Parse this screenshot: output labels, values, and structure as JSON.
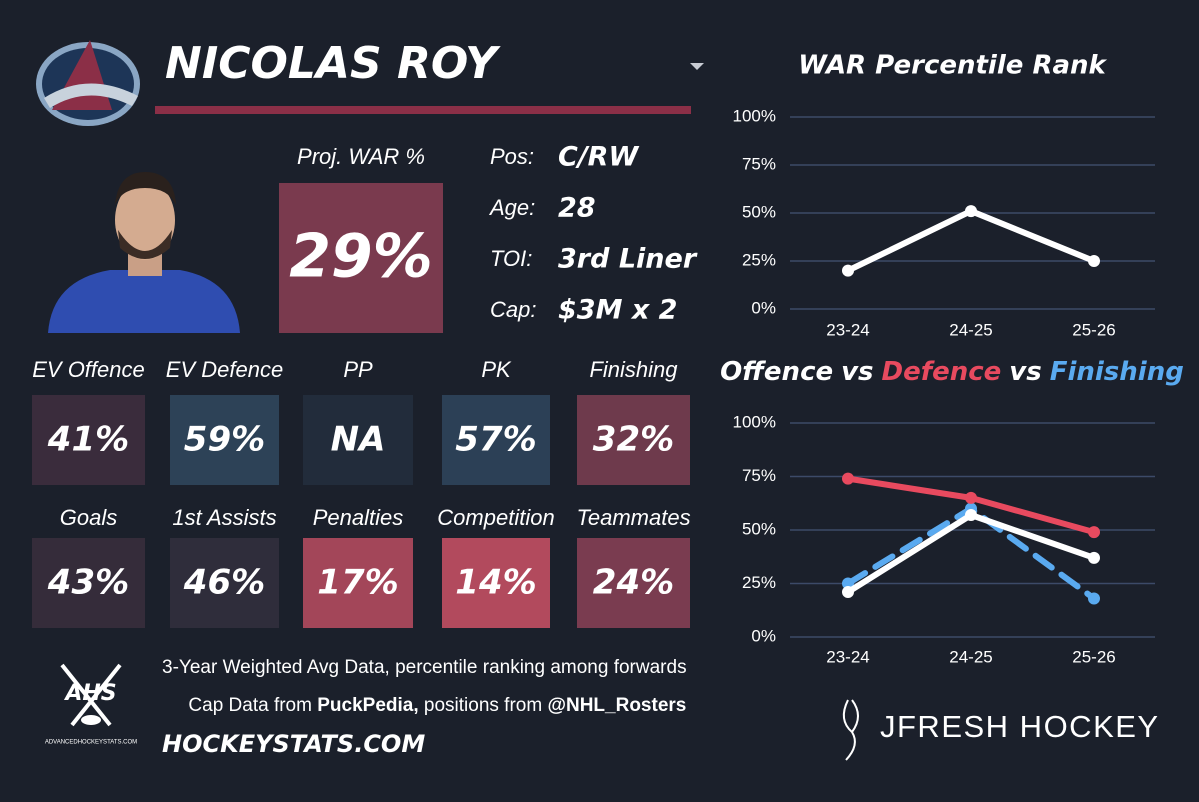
{
  "header": {
    "player": "NICOLAS ROY"
  },
  "projected_war": {
    "label": "Proj. WAR %",
    "value": "29%",
    "color": "#7a3a4e"
  },
  "bio": [
    {
      "label": "Pos:",
      "value": "C/RW"
    },
    {
      "label": "Age:",
      "value": "28"
    },
    {
      "label": "TOI:",
      "value": "3rd Liner"
    },
    {
      "label": "Cap:",
      "value": "$3M x 2"
    }
  ],
  "tiles": [
    {
      "label": "EV Offence",
      "value": "41%",
      "color": "#3a2c3c"
    },
    {
      "label": "EV Defence",
      "value": "59%",
      "color": "#2d4257"
    },
    {
      "label": "PP",
      "value": "NA",
      "color": "#222c3b"
    },
    {
      "label": "PK",
      "value": "57%",
      "color": "#2c4056"
    },
    {
      "label": "Finishing",
      "value": "32%",
      "color": "#6e3a4c"
    },
    {
      "label": "Goals",
      "value": "43%",
      "color": "#352c3a"
    },
    {
      "label": "1st Assists",
      "value": "46%",
      "color": "#2f2d3b"
    },
    {
      "label": "Penalties",
      "value": "17%",
      "color": "#a34659"
    },
    {
      "label": "Competition",
      "value": "14%",
      "color": "#b24a5d"
    },
    {
      "label": "Teammates",
      "value": "24%",
      "color": "#7a3c50"
    }
  ],
  "footer": {
    "line1": "3-Year Weighted Avg Data, percentile ranking among forwards",
    "line2": [
      "Cap Data from ",
      "PuckPedia,",
      " positions from ",
      "@NHL_Rosters"
    ],
    "site": "HOCKEYSTATS.COM"
  },
  "logos": {
    "ahs": "AHS",
    "ahs_site": "ADVANCEDHOCKEYSTATS.COM",
    "brand": "JFRESH HOCKEY"
  },
  "chart_data": [
    {
      "type": "line",
      "title": "WAR Percentile Rank",
      "categories": [
        "23-24",
        "24-25",
        "25-26"
      ],
      "values": [
        20,
        51,
        25
      ],
      "color": "#ffffff",
      "ylim": [
        0,
        100
      ],
      "yticks": [
        {
          "value": 0,
          "label": "0%"
        },
        {
          "value": 25,
          "label": "25%"
        },
        {
          "value": 50,
          "label": "50%"
        },
        {
          "value": 75,
          "label": "75%"
        },
        {
          "value": 100,
          "label": "100%"
        }
      ],
      "grid": true
    },
    {
      "type": "line",
      "title_separator": "vs",
      "categories": [
        "23-24",
        "24-25",
        "25-26"
      ],
      "series": [
        {
          "name": "Offence",
          "color": "#ffffff",
          "values": [
            21,
            57,
            37
          ]
        },
        {
          "name": "Defence",
          "color": "#e84a5f",
          "values": [
            74,
            65,
            49
          ]
        },
        {
          "name": "Finishing",
          "color": "#5aaaf0",
          "values": [
            25,
            60,
            18
          ],
          "dash": true
        }
      ],
      "ylim": [
        0,
        100
      ],
      "yticks": [
        {
          "value": 0,
          "label": "0%"
        },
        {
          "value": 25,
          "label": "25%"
        },
        {
          "value": 50,
          "label": "50%"
        },
        {
          "value": 75,
          "label": "75%"
        },
        {
          "value": 100,
          "label": "100%"
        }
      ],
      "grid": true
    }
  ]
}
